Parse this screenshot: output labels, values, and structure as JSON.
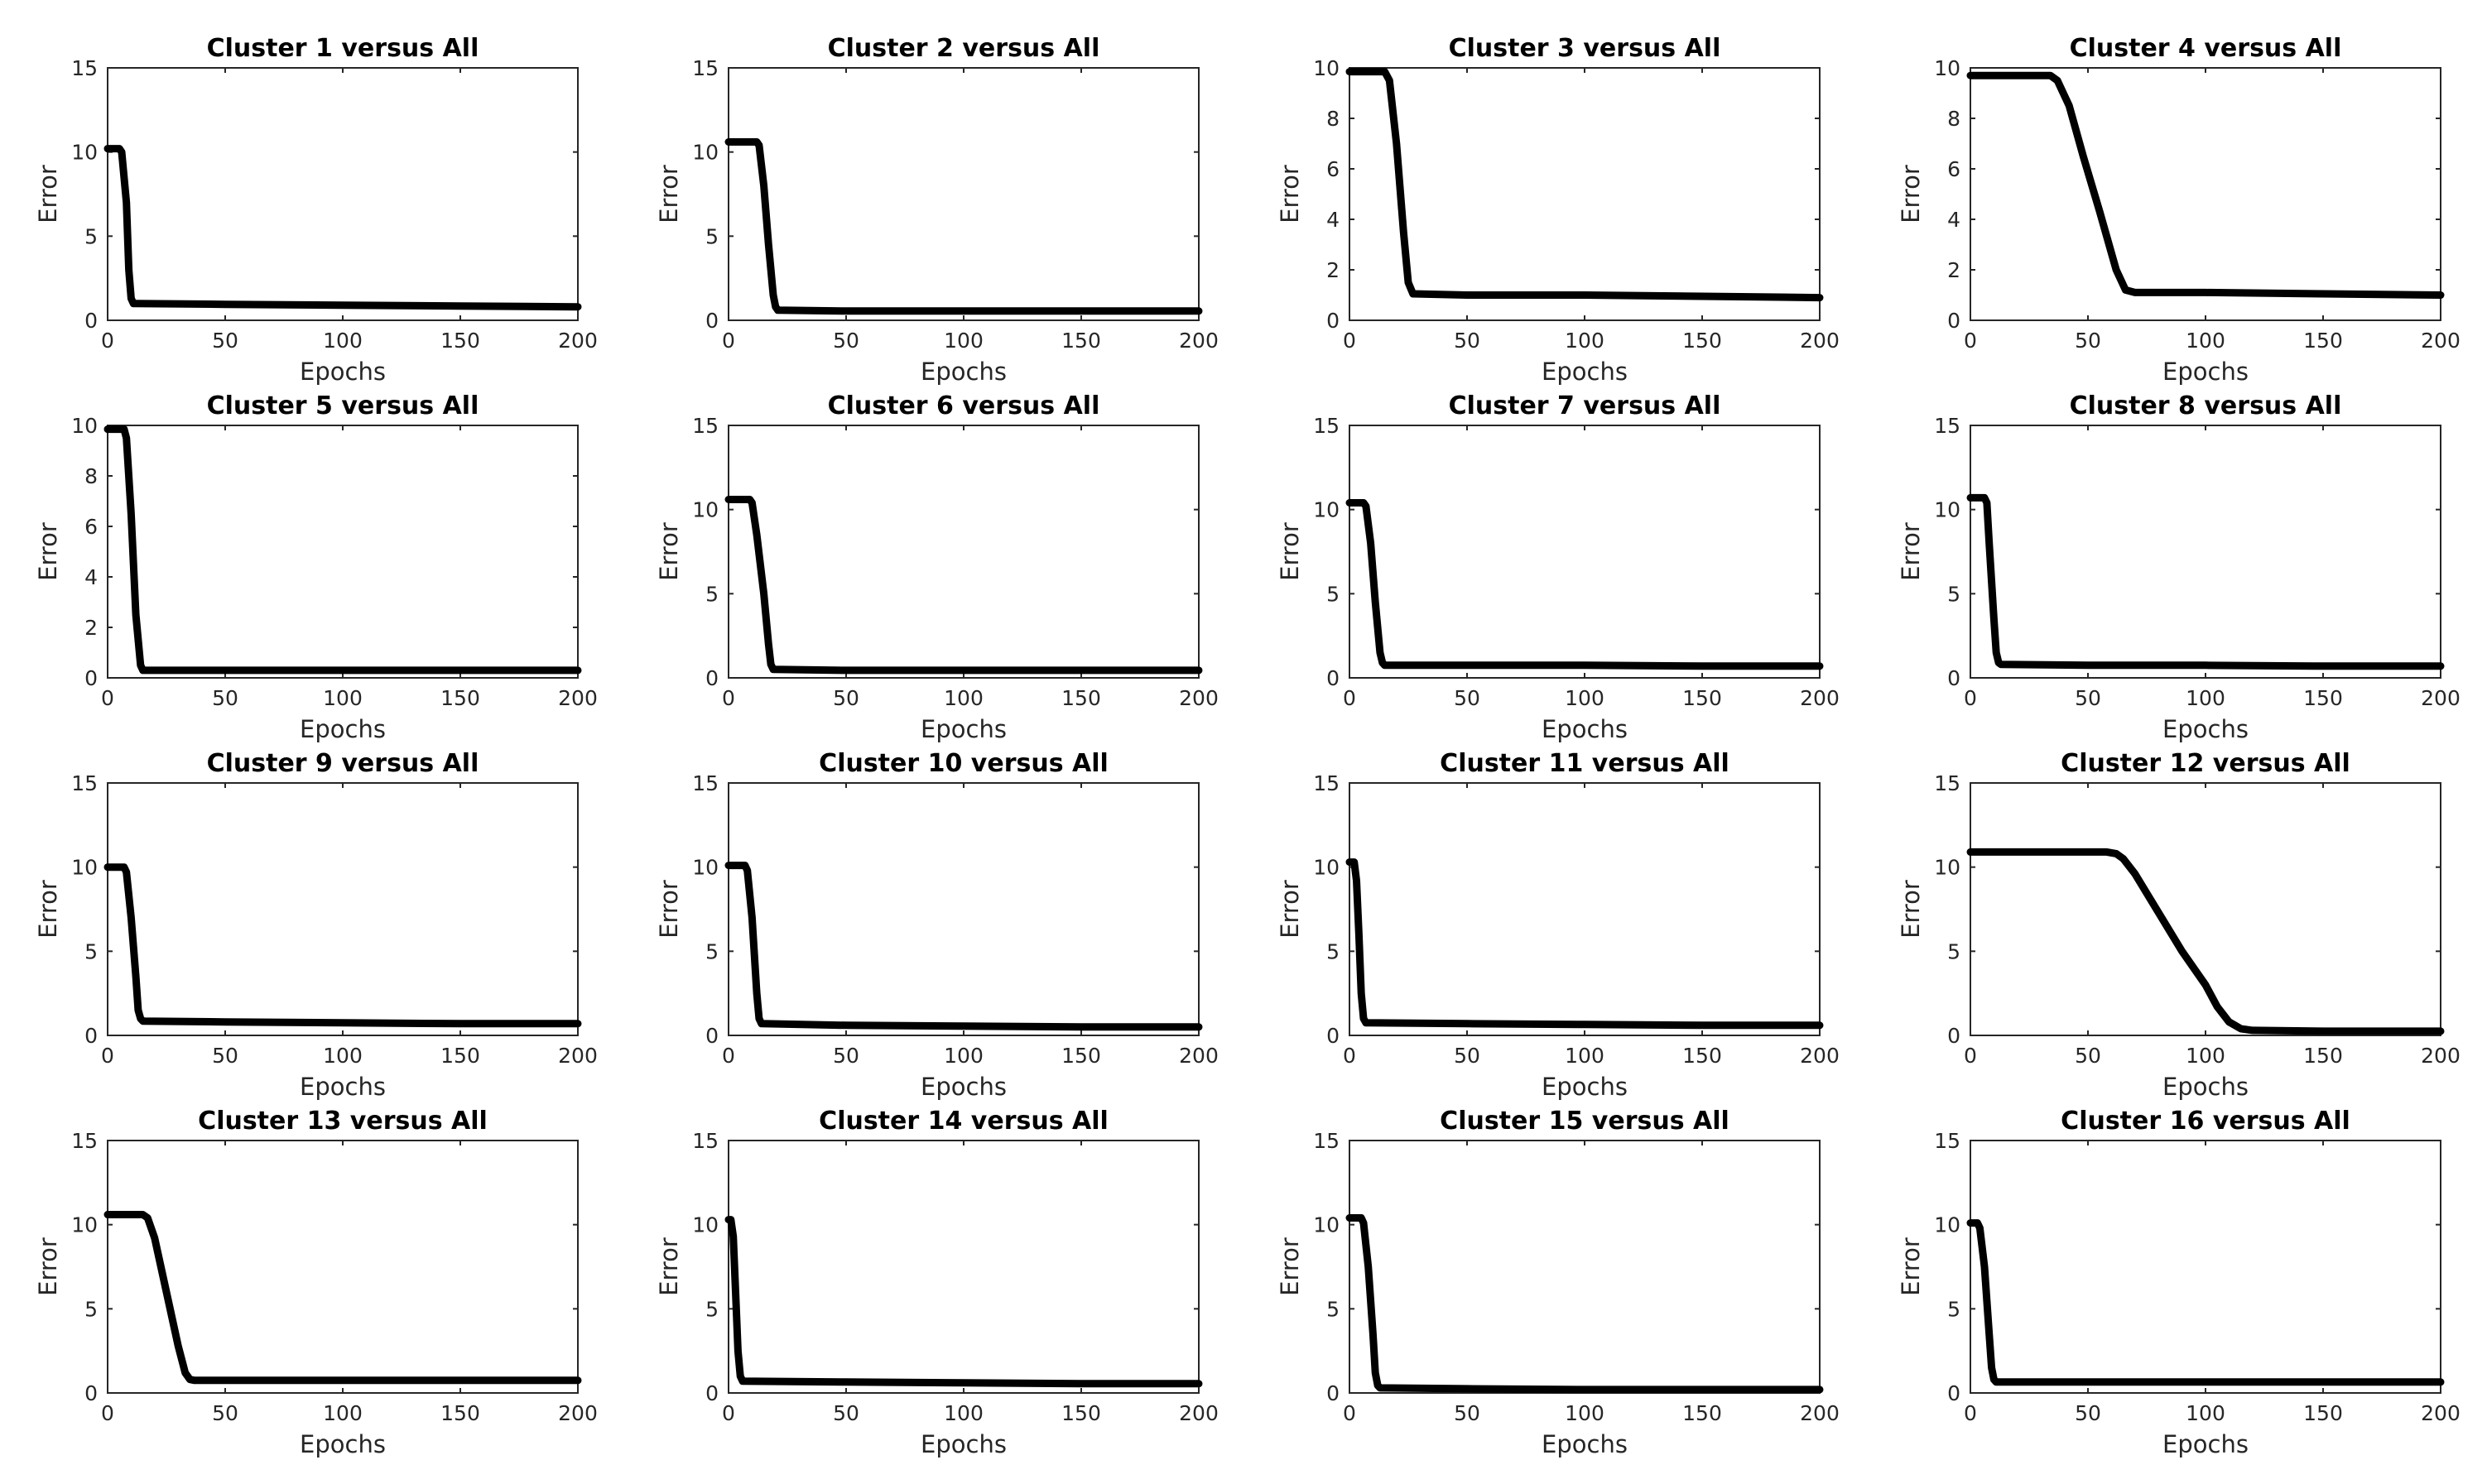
{
  "chart_data": [
    {
      "type": "line",
      "title": "Cluster 1 versus All",
      "xlabel": "Epochs",
      "ylabel": "Error",
      "xlim": [
        0,
        200
      ],
      "ylim": [
        0,
        15
      ],
      "xticks": [
        0,
        50,
        100,
        150,
        200
      ],
      "yticks": [
        0,
        5,
        10,
        15
      ],
      "series": [
        {
          "name": "Error",
          "x": [
            0,
            5,
            6,
            8,
            9,
            10,
            11,
            12,
            50,
            100,
            150,
            200
          ],
          "y": [
            10.2,
            10.2,
            10.0,
            7.0,
            3.0,
            1.3,
            1.0,
            1.0,
            0.95,
            0.9,
            0.85,
            0.8
          ]
        }
      ]
    },
    {
      "type": "line",
      "title": "Cluster 2 versus All",
      "xlabel": "Epochs",
      "ylabel": "Error",
      "xlim": [
        0,
        200
      ],
      "ylim": [
        0,
        15
      ],
      "xticks": [
        0,
        50,
        100,
        150,
        200
      ],
      "yticks": [
        0,
        5,
        10,
        15
      ],
      "series": [
        {
          "name": "Error",
          "x": [
            0,
            12,
            13,
            15,
            17,
            19,
            20,
            21,
            50,
            100,
            150,
            200
          ],
          "y": [
            10.6,
            10.6,
            10.4,
            8.0,
            4.5,
            1.5,
            0.8,
            0.6,
            0.55,
            0.55,
            0.55,
            0.55
          ]
        }
      ]
    },
    {
      "type": "line",
      "title": "Cluster 3 versus All",
      "xlabel": "Epochs",
      "ylabel": "Error",
      "xlim": [
        0,
        200
      ],
      "ylim": [
        0,
        10
      ],
      "xticks": [
        0,
        50,
        100,
        150,
        200
      ],
      "yticks": [
        0,
        2,
        4,
        6,
        8,
        10
      ],
      "series": [
        {
          "name": "Error",
          "x": [
            0,
            15,
            17,
            20,
            23,
            25,
            27,
            50,
            100,
            150,
            200
          ],
          "y": [
            9.85,
            9.85,
            9.5,
            7.0,
            3.5,
            1.5,
            1.05,
            1.0,
            1.0,
            0.95,
            0.9
          ]
        }
      ]
    },
    {
      "type": "line",
      "title": "Cluster 4 versus All",
      "xlabel": "Epochs",
      "ylabel": "Error",
      "xlim": [
        0,
        200
      ],
      "ylim": [
        0,
        10
      ],
      "xticks": [
        0,
        50,
        100,
        150,
        200
      ],
      "yticks": [
        0,
        2,
        4,
        6,
        8,
        10
      ],
      "series": [
        {
          "name": "Error",
          "x": [
            0,
            34,
            37,
            42,
            48,
            55,
            62,
            66,
            70,
            100,
            150,
            200
          ],
          "y": [
            9.7,
            9.7,
            9.5,
            8.5,
            6.5,
            4.3,
            2.0,
            1.2,
            1.1,
            1.1,
            1.05,
            1.0
          ]
        }
      ]
    },
    {
      "type": "line",
      "title": "Cluster 5 versus All",
      "xlabel": "Epochs",
      "ylabel": "Error",
      "xlim": [
        0,
        200
      ],
      "ylim": [
        0,
        10
      ],
      "xticks": [
        0,
        50,
        100,
        150,
        200
      ],
      "yticks": [
        0,
        2,
        4,
        6,
        8,
        10
      ],
      "series": [
        {
          "name": "Error",
          "x": [
            0,
            7,
            8,
            10,
            12,
            14,
            15,
            50,
            100,
            150,
            200
          ],
          "y": [
            9.85,
            9.85,
            9.5,
            6.5,
            2.5,
            0.5,
            0.3,
            0.3,
            0.3,
            0.3,
            0.3
          ]
        }
      ]
    },
    {
      "type": "line",
      "title": "Cluster 6 versus All",
      "xlabel": "Epochs",
      "ylabel": "Error",
      "xlim": [
        0,
        200
      ],
      "ylim": [
        0,
        15
      ],
      "xticks": [
        0,
        50,
        100,
        150,
        200
      ],
      "yticks": [
        0,
        5,
        10,
        15
      ],
      "series": [
        {
          "name": "Error",
          "x": [
            0,
            9,
            10,
            12,
            15,
            17,
            18,
            19,
            50,
            100,
            150,
            200
          ],
          "y": [
            10.6,
            10.6,
            10.4,
            8.5,
            5.0,
            2.0,
            0.8,
            0.5,
            0.45,
            0.45,
            0.45,
            0.45
          ]
        }
      ]
    },
    {
      "type": "line",
      "title": "Cluster 7 versus All",
      "xlabel": "Epochs",
      "ylabel": "Error",
      "xlim": [
        0,
        200
      ],
      "ylim": [
        0,
        15
      ],
      "xticks": [
        0,
        50,
        100,
        150,
        200
      ],
      "yticks": [
        0,
        5,
        10,
        15
      ],
      "series": [
        {
          "name": "Error",
          "x": [
            0,
            6,
            7,
            9,
            11,
            13,
            14,
            15,
            50,
            100,
            150,
            200
          ],
          "y": [
            10.4,
            10.4,
            10.2,
            8.0,
            4.5,
            1.5,
            0.9,
            0.75,
            0.75,
            0.75,
            0.7,
            0.7
          ]
        }
      ]
    },
    {
      "type": "line",
      "title": "Cluster 8 versus All",
      "xlabel": "Epochs",
      "ylabel": "Error",
      "xlim": [
        0,
        200
      ],
      "ylim": [
        0,
        15
      ],
      "xticks": [
        0,
        50,
        100,
        150,
        200
      ],
      "yticks": [
        0,
        5,
        10,
        15
      ],
      "series": [
        {
          "name": "Error",
          "x": [
            0,
            6,
            7,
            8,
            10,
            11,
            12,
            13,
            50,
            100,
            150,
            200
          ],
          "y": [
            10.7,
            10.7,
            10.4,
            8.0,
            3.5,
            1.5,
            0.9,
            0.8,
            0.75,
            0.75,
            0.7,
            0.7
          ]
        }
      ]
    },
    {
      "type": "line",
      "title": "Cluster 9 versus All",
      "xlabel": "Epochs",
      "ylabel": "Error",
      "xlim": [
        0,
        200
      ],
      "ylim": [
        0,
        15
      ],
      "xticks": [
        0,
        50,
        100,
        150,
        200
      ],
      "yticks": [
        0,
        5,
        10,
        15
      ],
      "series": [
        {
          "name": "Error",
          "x": [
            0,
            7,
            8,
            10,
            12,
            13,
            14,
            15,
            50,
            100,
            150,
            200
          ],
          "y": [
            10.0,
            10.0,
            9.7,
            7.0,
            3.5,
            1.5,
            1.0,
            0.85,
            0.8,
            0.75,
            0.7,
            0.7
          ]
        }
      ]
    },
    {
      "type": "line",
      "title": "Cluster 10 versus All",
      "xlabel": "Epochs",
      "ylabel": "Error",
      "xlim": [
        0,
        200
      ],
      "ylim": [
        0,
        15
      ],
      "xticks": [
        0,
        50,
        100,
        150,
        200
      ],
      "yticks": [
        0,
        5,
        10,
        15
      ],
      "series": [
        {
          "name": "Error",
          "x": [
            0,
            7,
            8,
            10,
            12,
            13,
            14,
            50,
            100,
            150,
            200
          ],
          "y": [
            10.1,
            10.1,
            9.8,
            7.0,
            2.5,
            1.0,
            0.7,
            0.6,
            0.55,
            0.5,
            0.5
          ]
        }
      ]
    },
    {
      "type": "line",
      "title": "Cluster 11 versus All",
      "xlabel": "Epochs",
      "ylabel": "Error",
      "xlim": [
        0,
        200
      ],
      "ylim": [
        0,
        15
      ],
      "xticks": [
        0,
        50,
        100,
        150,
        200
      ],
      "yticks": [
        0,
        5,
        10,
        15
      ],
      "series": [
        {
          "name": "Error",
          "x": [
            0,
            2,
            3,
            4,
            5,
            6,
            7,
            50,
            100,
            150,
            200
          ],
          "y": [
            10.3,
            10.3,
            9.2,
            6.0,
            2.5,
            1.0,
            0.75,
            0.7,
            0.65,
            0.6,
            0.6
          ]
        }
      ]
    },
    {
      "type": "line",
      "title": "Cluster 12 versus All",
      "xlabel": "Epochs",
      "ylabel": "Error",
      "xlim": [
        0,
        200
      ],
      "ylim": [
        0,
        15
      ],
      "xticks": [
        0,
        50,
        100,
        150,
        200
      ],
      "yticks": [
        0,
        5,
        10,
        15
      ],
      "series": [
        {
          "name": "Error",
          "x": [
            0,
            58,
            62,
            65,
            70,
            80,
            90,
            100,
            105,
            110,
            115,
            120,
            150,
            200
          ],
          "y": [
            10.9,
            10.9,
            10.8,
            10.5,
            9.6,
            7.3,
            5.0,
            3.0,
            1.7,
            0.8,
            0.4,
            0.3,
            0.25,
            0.25
          ]
        }
      ]
    },
    {
      "type": "line",
      "title": "Cluster 13 versus All",
      "xlabel": "Epochs",
      "ylabel": "Error",
      "xlim": [
        0,
        200
      ],
      "ylim": [
        0,
        15
      ],
      "xticks": [
        0,
        50,
        100,
        150,
        200
      ],
      "yticks": [
        0,
        5,
        10,
        15
      ],
      "series": [
        {
          "name": "Error",
          "x": [
            0,
            15,
            17,
            20,
            25,
            30,
            33,
            35,
            37,
            50,
            100,
            150,
            200
          ],
          "y": [
            10.6,
            10.6,
            10.4,
            9.2,
            6.0,
            2.8,
            1.2,
            0.8,
            0.75,
            0.75,
            0.75,
            0.75,
            0.75
          ]
        }
      ]
    },
    {
      "type": "line",
      "title": "Cluster 14 versus All",
      "xlabel": "Epochs",
      "ylabel": "Error",
      "xlim": [
        0,
        200
      ],
      "ylim": [
        0,
        15
      ],
      "xticks": [
        0,
        50,
        100,
        150,
        200
      ],
      "yticks": [
        0,
        5,
        10,
        15
      ],
      "series": [
        {
          "name": "Error",
          "x": [
            0,
            1,
            2,
            3,
            4,
            5,
            6,
            50,
            100,
            150,
            200
          ],
          "y": [
            10.3,
            10.3,
            9.3,
            6.0,
            2.5,
            1.0,
            0.7,
            0.65,
            0.6,
            0.55,
            0.55
          ]
        }
      ]
    },
    {
      "type": "line",
      "title": "Cluster 15 versus All",
      "xlabel": "Epochs",
      "ylabel": "Error",
      "xlim": [
        0,
        200
      ],
      "ylim": [
        0,
        15
      ],
      "xticks": [
        0,
        50,
        100,
        150,
        200
      ],
      "yticks": [
        0,
        5,
        10,
        15
      ],
      "series": [
        {
          "name": "Error",
          "x": [
            0,
            5,
            6,
            8,
            10,
            11,
            12,
            13,
            50,
            100,
            150,
            200
          ],
          "y": [
            10.4,
            10.4,
            10.1,
            7.5,
            3.5,
            1.2,
            0.45,
            0.3,
            0.25,
            0.2,
            0.2,
            0.2
          ]
        }
      ]
    },
    {
      "type": "line",
      "title": "Cluster 16 versus All",
      "xlabel": "Epochs",
      "ylabel": "Error",
      "xlim": [
        0,
        200
      ],
      "ylim": [
        0,
        15
      ],
      "xticks": [
        0,
        50,
        100,
        150,
        200
      ],
      "yticks": [
        0,
        5,
        10,
        15
      ],
      "series": [
        {
          "name": "Error",
          "x": [
            0,
            3,
            4,
            6,
            8,
            9,
            10,
            11,
            50,
            100,
            150,
            200
          ],
          "y": [
            10.1,
            10.1,
            9.8,
            7.5,
            3.5,
            1.5,
            0.8,
            0.65,
            0.65,
            0.65,
            0.65,
            0.65
          ]
        }
      ]
    }
  ]
}
